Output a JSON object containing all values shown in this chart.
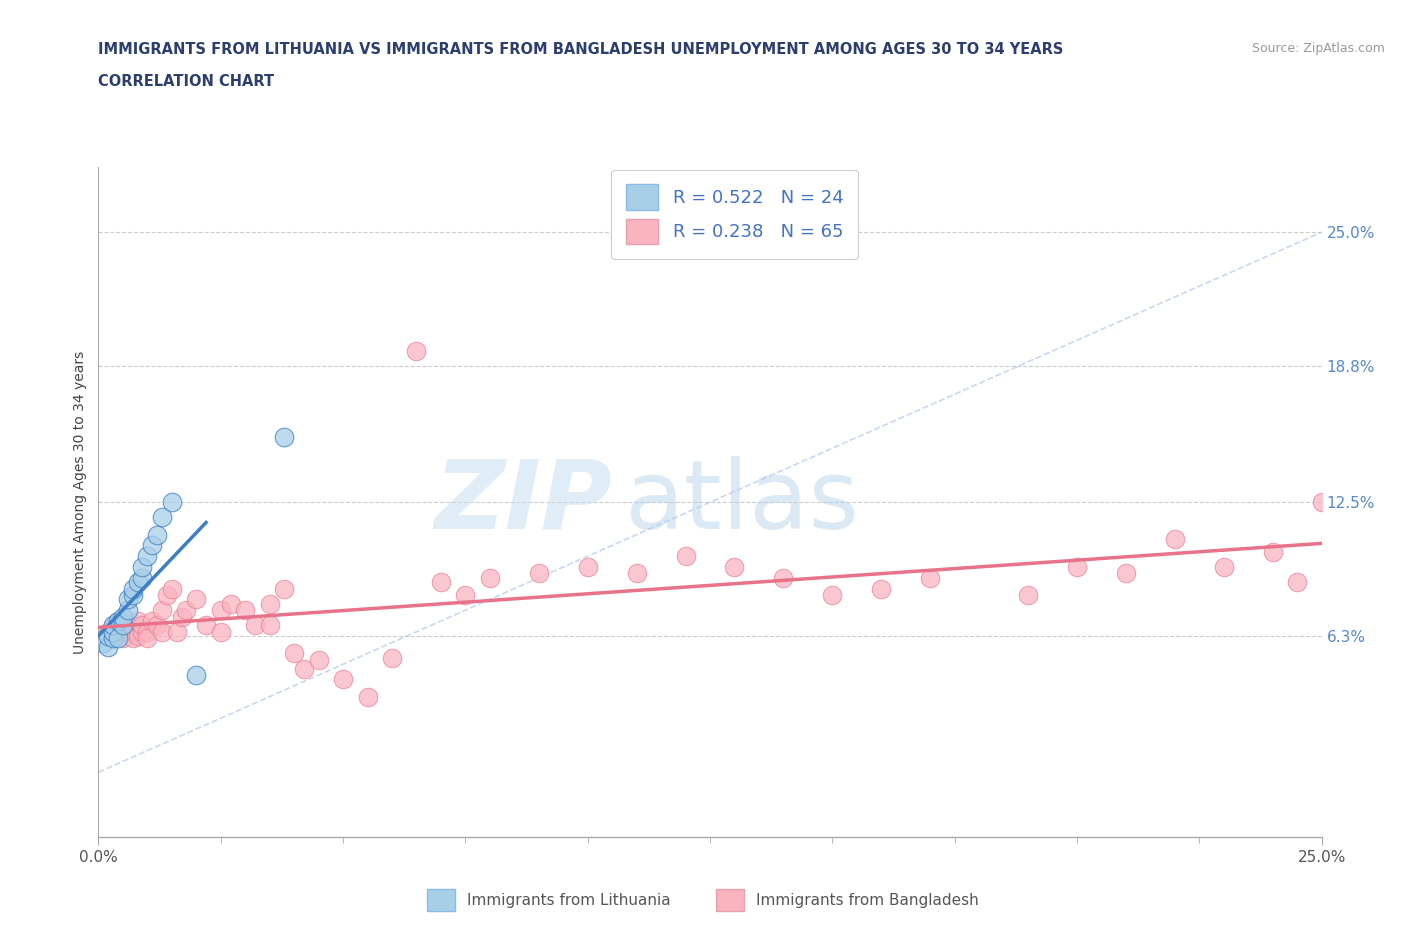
{
  "title_line1": "IMMIGRANTS FROM LITHUANIA VS IMMIGRANTS FROM BANGLADESH UNEMPLOYMENT AMONG AGES 30 TO 34 YEARS",
  "title_line2": "CORRELATION CHART",
  "source_text": "Source: ZipAtlas.com",
  "ylabel": "Unemployment Among Ages 30 to 34 years",
  "legend_r1": "R = 0.522",
  "legend_n1": "N = 24",
  "legend_r2": "R = 0.238",
  "legend_n2": "N = 65",
  "color_lithuania": "#a8cfe8",
  "color_bangladesh": "#f9b4c0",
  "color_lithuania_line": "#3d7ec4",
  "color_bangladesh_line": "#e8728a",
  "color_diag": "#b0c8e8",
  "color_title": "#2c3e6e",
  "xlim": [
    0.0,
    0.25
  ],
  "ylim": [
    -0.03,
    0.28
  ],
  "yticks": [
    0.063,
    0.125,
    0.188,
    0.25
  ],
  "yticklabels": [
    "6.3%",
    "12.5%",
    "18.8%",
    "25.0%"
  ],
  "xticks": [
    0.0,
    0.25
  ],
  "xticklabels": [
    "0.0%",
    "25.0%"
  ],
  "legend_label1": "Immigrants from Lithuania",
  "legend_label2": "Immigrants from Bangladesh",
  "lith_x": [
    0.001,
    0.002,
    0.002,
    0.003,
    0.003,
    0.003,
    0.004,
    0.004,
    0.005,
    0.005,
    0.006,
    0.006,
    0.007,
    0.007,
    0.008,
    0.009,
    0.009,
    0.01,
    0.011,
    0.012,
    0.013,
    0.015,
    0.02,
    0.038
  ],
  "lith_y": [
    0.06,
    0.058,
    0.063,
    0.062,
    0.065,
    0.068,
    0.062,
    0.07,
    0.068,
    0.072,
    0.075,
    0.08,
    0.082,
    0.085,
    0.088,
    0.09,
    0.095,
    0.1,
    0.105,
    0.11,
    0.118,
    0.125,
    0.045,
    0.155
  ],
  "bang_x": [
    0.002,
    0.003,
    0.003,
    0.004,
    0.004,
    0.005,
    0.005,
    0.005,
    0.006,
    0.006,
    0.007,
    0.007,
    0.008,
    0.008,
    0.008,
    0.009,
    0.009,
    0.01,
    0.01,
    0.011,
    0.012,
    0.013,
    0.013,
    0.014,
    0.015,
    0.016,
    0.017,
    0.018,
    0.02,
    0.022,
    0.025,
    0.025,
    0.027,
    0.03,
    0.032,
    0.035,
    0.035,
    0.038,
    0.04,
    0.042,
    0.045,
    0.05,
    0.055,
    0.06,
    0.065,
    0.07,
    0.075,
    0.08,
    0.09,
    0.1,
    0.11,
    0.12,
    0.13,
    0.14,
    0.15,
    0.16,
    0.17,
    0.19,
    0.2,
    0.21,
    0.22,
    0.23,
    0.24,
    0.245,
    0.25
  ],
  "bang_y": [
    0.065,
    0.068,
    0.063,
    0.07,
    0.065,
    0.062,
    0.065,
    0.07,
    0.065,
    0.068,
    0.065,
    0.062,
    0.065,
    0.063,
    0.07,
    0.065,
    0.068,
    0.065,
    0.062,
    0.07,
    0.068,
    0.075,
    0.065,
    0.082,
    0.085,
    0.065,
    0.072,
    0.075,
    0.08,
    0.068,
    0.075,
    0.065,
    0.078,
    0.075,
    0.068,
    0.078,
    0.068,
    0.085,
    0.055,
    0.048,
    0.052,
    0.043,
    0.035,
    0.053,
    0.195,
    0.088,
    0.082,
    0.09,
    0.092,
    0.095,
    0.092,
    0.1,
    0.095,
    0.09,
    0.082,
    0.085,
    0.09,
    0.082,
    0.095,
    0.092,
    0.108,
    0.095,
    0.102,
    0.088,
    0.125
  ]
}
